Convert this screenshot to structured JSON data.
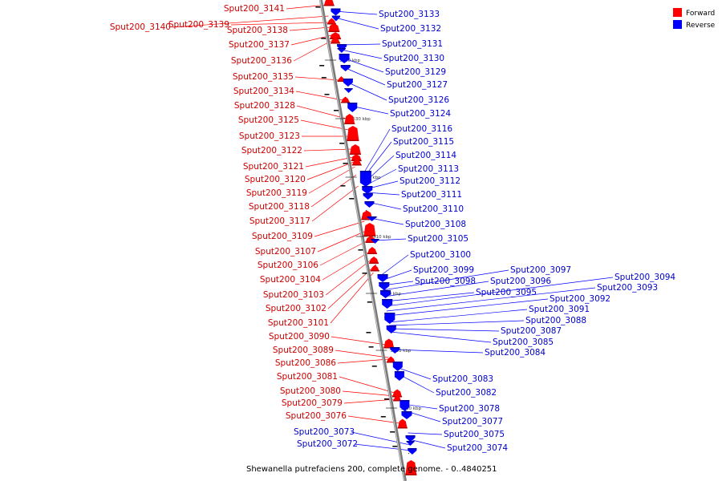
{
  "legend": {
    "forward": {
      "label": "Forward",
      "color": "#ff0000"
    },
    "reverse": {
      "label": "Reverse",
      "color": "#0000ff"
    }
  },
  "caption": "Shewanella putrefaciens 200, complete genome. - 0..4840251",
  "ticks": [
    "3540 kbp",
    "3530 kbp",
    "3520 kbp",
    "3510 kbp",
    "3500 kbp",
    "3490 kbp",
    "3480 kbp"
  ],
  "forward_genes": [
    "Sput200_3141",
    "Sput200_3140",
    "Sput200_3139",
    "Sput200_3138",
    "Sput200_3137",
    "Sput200_3136",
    "Sput200_3135",
    "Sput200_3134",
    "Sput200_3128",
    "Sput200_3125",
    "Sput200_3123",
    "Sput200_3122",
    "Sput200_3121",
    "Sput200_3120",
    "Sput200_3119",
    "Sput200_3118",
    "Sput200_3117",
    "Sput200_3109",
    "Sput200_3107",
    "Sput200_3106",
    "Sput200_3104",
    "Sput200_3103",
    "Sput200_3102",
    "Sput200_3101",
    "Sput200_3090",
    "Sput200_3089",
    "Sput200_3086",
    "Sput200_3081",
    "Sput200_3080",
    "Sput200_3079",
    "Sput200_3076"
  ],
  "reverse_genes": [
    "Sput200_3133",
    "Sput200_3132",
    "Sput200_3131",
    "Sput200_3130",
    "Sput200_3129",
    "Sput200_3127",
    "Sput200_3126",
    "Sput200_3124",
    "Sput200_3116",
    "Sput200_3115",
    "Sput200_3114",
    "Sput200_3113",
    "Sput200_3112",
    "Sput200_3111",
    "Sput200_3110",
    "Sput200_3108",
    "Sput200_3105",
    "Sput200_3100",
    "Sput200_3099",
    "Sput200_3098",
    "Sput200_3097",
    "Sput200_3096",
    "Sput200_3095",
    "Sput200_3094",
    "Sput200_3093",
    "Sput200_3092",
    "Sput200_3091",
    "Sput200_3088",
    "Sput200_3087",
    "Sput200_3085",
    "Sput200_3084",
    "Sput200_3083",
    "Sput200_3082",
    "Sput200_3078",
    "Sput200_3077",
    "Sput200_3075",
    "Sput200_3074",
    "Sput200_3073",
    "Sput200_3072"
  ]
}
